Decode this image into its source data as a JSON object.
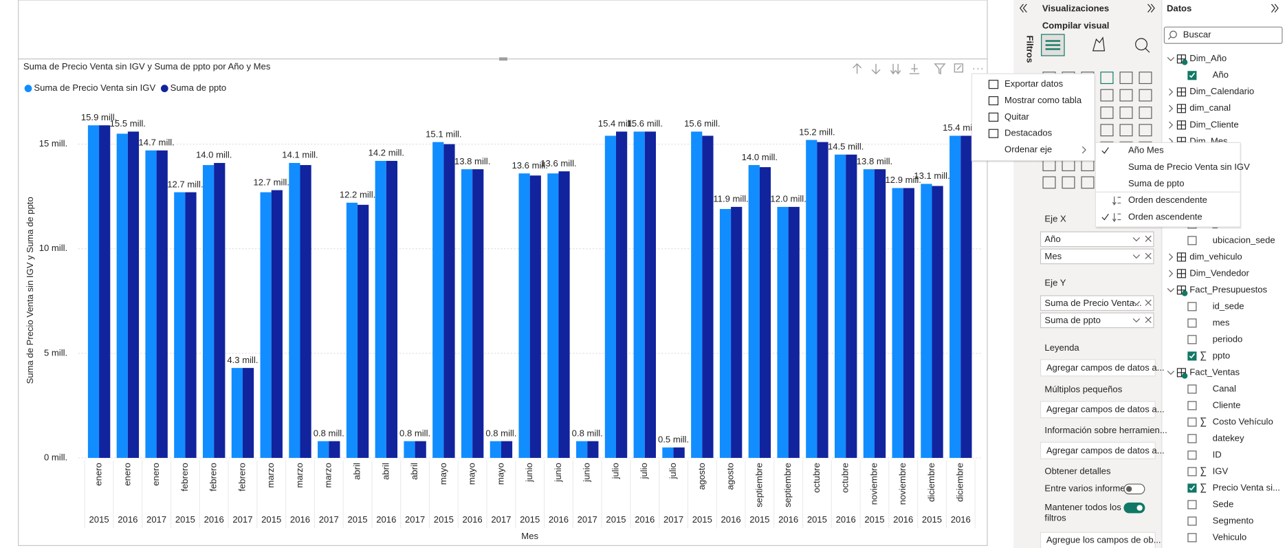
{
  "chart_data": {
    "type": "bar",
    "title": "Suma de Precio Venta sin IGV y Suma de ppto por Año y Mes",
    "x_label": "Mes",
    "y_label": "Suma de Precio Venta sin IGV y Suma de ppto",
    "categories": [
      "enero",
      "enero",
      "enero",
      "febrero",
      "febrero",
      "febrero",
      "marzo",
      "marzo",
      "marzo",
      "abril",
      "abril",
      "abril",
      "mayo",
      "mayo",
      "mayo",
      "junio",
      "junio",
      "junio",
      "julio",
      "julio",
      "julio",
      "agosto",
      "agosto",
      "septiembre",
      "septiembre",
      "octubre",
      "octubre",
      "noviembre",
      "noviembre",
      "diciembre",
      "diciembre"
    ],
    "years": [
      "2015",
      "2016",
      "2017",
      "2015",
      "2016",
      "2017",
      "2015",
      "2016",
      "2017",
      "2015",
      "2016",
      "2017",
      "2015",
      "2016",
      "2017",
      "2015",
      "2016",
      "2017",
      "2015",
      "2016",
      "2017",
      "2015",
      "2016",
      "2015",
      "2016",
      "2015",
      "2016",
      "2015",
      "2016",
      "2015",
      "2016"
    ],
    "series": [
      {
        "name": "Suma de Precio Venta sin IGV",
        "color": "#118dff",
        "values": [
          15.9,
          15.5,
          14.7,
          12.7,
          14.0,
          4.3,
          12.7,
          14.1,
          0.8,
          12.2,
          14.2,
          0.8,
          15.1,
          13.8,
          0.8,
          13.6,
          13.6,
          0.8,
          15.4,
          15.6,
          0.5,
          15.6,
          11.9,
          14.0,
          12.0,
          15.2,
          14.5,
          13.8,
          12.9,
          13.1,
          15.4
        ],
        "value_labels": [
          "15.9 mill.",
          "15.5 mill.",
          "14.7 mill.",
          "12.7 mill.",
          "14.0 mill.",
          "4.3 mill.",
          "12.7 mill.",
          "14.1 mill.",
          "0.8 mill.",
          "12.2 mill.",
          "14.2 mill.",
          "0.8 mill.",
          "15.1 mill.",
          "13.8 mill.",
          "0.8 mill.",
          "13.6 mill.",
          "13.6 mill.",
          "0.8 mill.",
          "15.4 mill.",
          "15.6 mill.",
          "0.5 mill.",
          "15.6 mill.",
          "11.9 mill.",
          "14.0 mill.",
          "12.0 mill.",
          "15.2 mill.",
          "14.5 mill.",
          "13.8 mill.",
          "12.9 mill.",
          "13.1 mill.",
          "15.4 mill."
        ]
      },
      {
        "name": "Suma de ppto",
        "color": "#12239e",
        "values": [
          15.9,
          15.6,
          14.7,
          12.7,
          14.1,
          4.3,
          12.8,
          14.0,
          0.8,
          12.1,
          14.2,
          0.8,
          15.0,
          13.8,
          0.8,
          13.5,
          13.7,
          0.8,
          15.6,
          15.6,
          0.5,
          15.4,
          12.0,
          13.9,
          12.0,
          15.1,
          14.5,
          13.8,
          12.9,
          13.0,
          15.4
        ]
      }
    ],
    "ylim": [
      0,
      16.8
    ],
    "yticks": [
      {
        "value": 0,
        "label": "0 mill."
      },
      {
        "value": 5,
        "label": "5 mill."
      },
      {
        "value": 10,
        "label": "10 mill."
      },
      {
        "value": 15,
        "label": "15 mill."
      }
    ],
    "grid": true,
    "legend": "top-left"
  },
  "filters_pane": {
    "label": "Filtros"
  },
  "visualizations_pane": {
    "title": "Visualizaciones",
    "build_label": "Compilar visual",
    "wells": [
      {
        "label": "Eje X",
        "fields": [
          "Año",
          "Mes"
        ]
      },
      {
        "label": "Eje Y",
        "fields": [
          "Suma de Precio Venta...",
          "Suma de ppto"
        ]
      },
      {
        "label": "Leyenda",
        "placeholder": "Agregar campos de datos a..."
      },
      {
        "label": "Múltiplos pequeños",
        "placeholder": "Agregar campos de datos a..."
      },
      {
        "label": "Información sobre herramien...",
        "placeholder": "Agregar campos de datos a..."
      }
    ],
    "drillthrough": {
      "title": "Obtener detalles",
      "toggles": [
        {
          "label": [
            "Entre varios informes"
          ],
          "on": false
        },
        {
          "label": [
            "Mantener todos los",
            "filtros"
          ],
          "on": true
        }
      ],
      "placeholder": "Agregue los campos de ob..."
    }
  },
  "data_pane": {
    "title": "Datos",
    "search": "Buscar",
    "items": [
      {
        "label": "Dim_Año",
        "kind": "table",
        "expanded": true
      },
      {
        "label": "Año",
        "kind": "field",
        "checked": true,
        "sum": false
      },
      {
        "label": "Dim_Calendario",
        "kind": "table",
        "expanded": false
      },
      {
        "label": "dim_canal",
        "kind": "table",
        "expanded": false
      },
      {
        "label": "Dim_Cliente",
        "kind": "table",
        "expanded": false
      },
      {
        "label": "Dim_Mes",
        "kind": "table",
        "expanded": false
      },
      {
        "label": "_sede",
        "kind": "field",
        "checked": false,
        "sum": false
      },
      {
        "label": "ubicacion_sede",
        "kind": "field",
        "checked": false,
        "sum": false
      },
      {
        "label": "dim_vehiculo",
        "kind": "table",
        "expanded": false
      },
      {
        "label": "Dim_Vendedor",
        "kind": "table",
        "expanded": false
      },
      {
        "label": "Fact_Presupuestos",
        "kind": "table",
        "expanded": true
      },
      {
        "label": "id_sede",
        "kind": "field",
        "checked": false,
        "sum": false
      },
      {
        "label": "mes",
        "kind": "field",
        "checked": false,
        "sum": false
      },
      {
        "label": "periodo",
        "kind": "field",
        "checked": false,
        "sum": false
      },
      {
        "label": "ppto",
        "kind": "field",
        "checked": true,
        "sum": true
      },
      {
        "label": "Fact_Ventas",
        "kind": "table",
        "expanded": true
      },
      {
        "label": "Canal",
        "kind": "field",
        "checked": false,
        "sum": false
      },
      {
        "label": "Cliente",
        "kind": "field",
        "checked": false,
        "sum": false
      },
      {
        "label": "Costo Vehículo",
        "kind": "field",
        "checked": false,
        "sum": true
      },
      {
        "label": "datekey",
        "kind": "field",
        "checked": false,
        "sum": false
      },
      {
        "label": "ID",
        "kind": "field",
        "checked": false,
        "sum": false
      },
      {
        "label": "IGV",
        "kind": "field",
        "checked": false,
        "sum": true
      },
      {
        "label": "Precio Venta si...",
        "kind": "field",
        "checked": true,
        "sum": true
      },
      {
        "label": "Sede",
        "kind": "field",
        "checked": false,
        "sum": false
      },
      {
        "label": "Segmento",
        "kind": "field",
        "checked": false,
        "sum": false
      },
      {
        "label": "Vehiculo",
        "kind": "field",
        "checked": false,
        "sum": false
      }
    ]
  },
  "context_menu": {
    "items": [
      {
        "label": "Exportar datos",
        "has_submenu": false
      },
      {
        "label": "Mostrar como tabla",
        "has_submenu": false
      },
      {
        "label": "Quitar",
        "has_submenu": false
      },
      {
        "label": "Destacados",
        "has_submenu": false
      },
      {
        "label": "Ordenar eje",
        "has_submenu": true
      }
    ]
  },
  "sort_submenu": {
    "items": [
      {
        "label": "Año Mes",
        "checked": true
      },
      {
        "label": "Suma de Precio Venta sin IGV",
        "checked": false
      },
      {
        "label": "Suma de ppto",
        "checked": false
      },
      {
        "label": "Orden descendente",
        "checked": false
      },
      {
        "label": "Orden ascendente",
        "checked": true
      }
    ]
  }
}
